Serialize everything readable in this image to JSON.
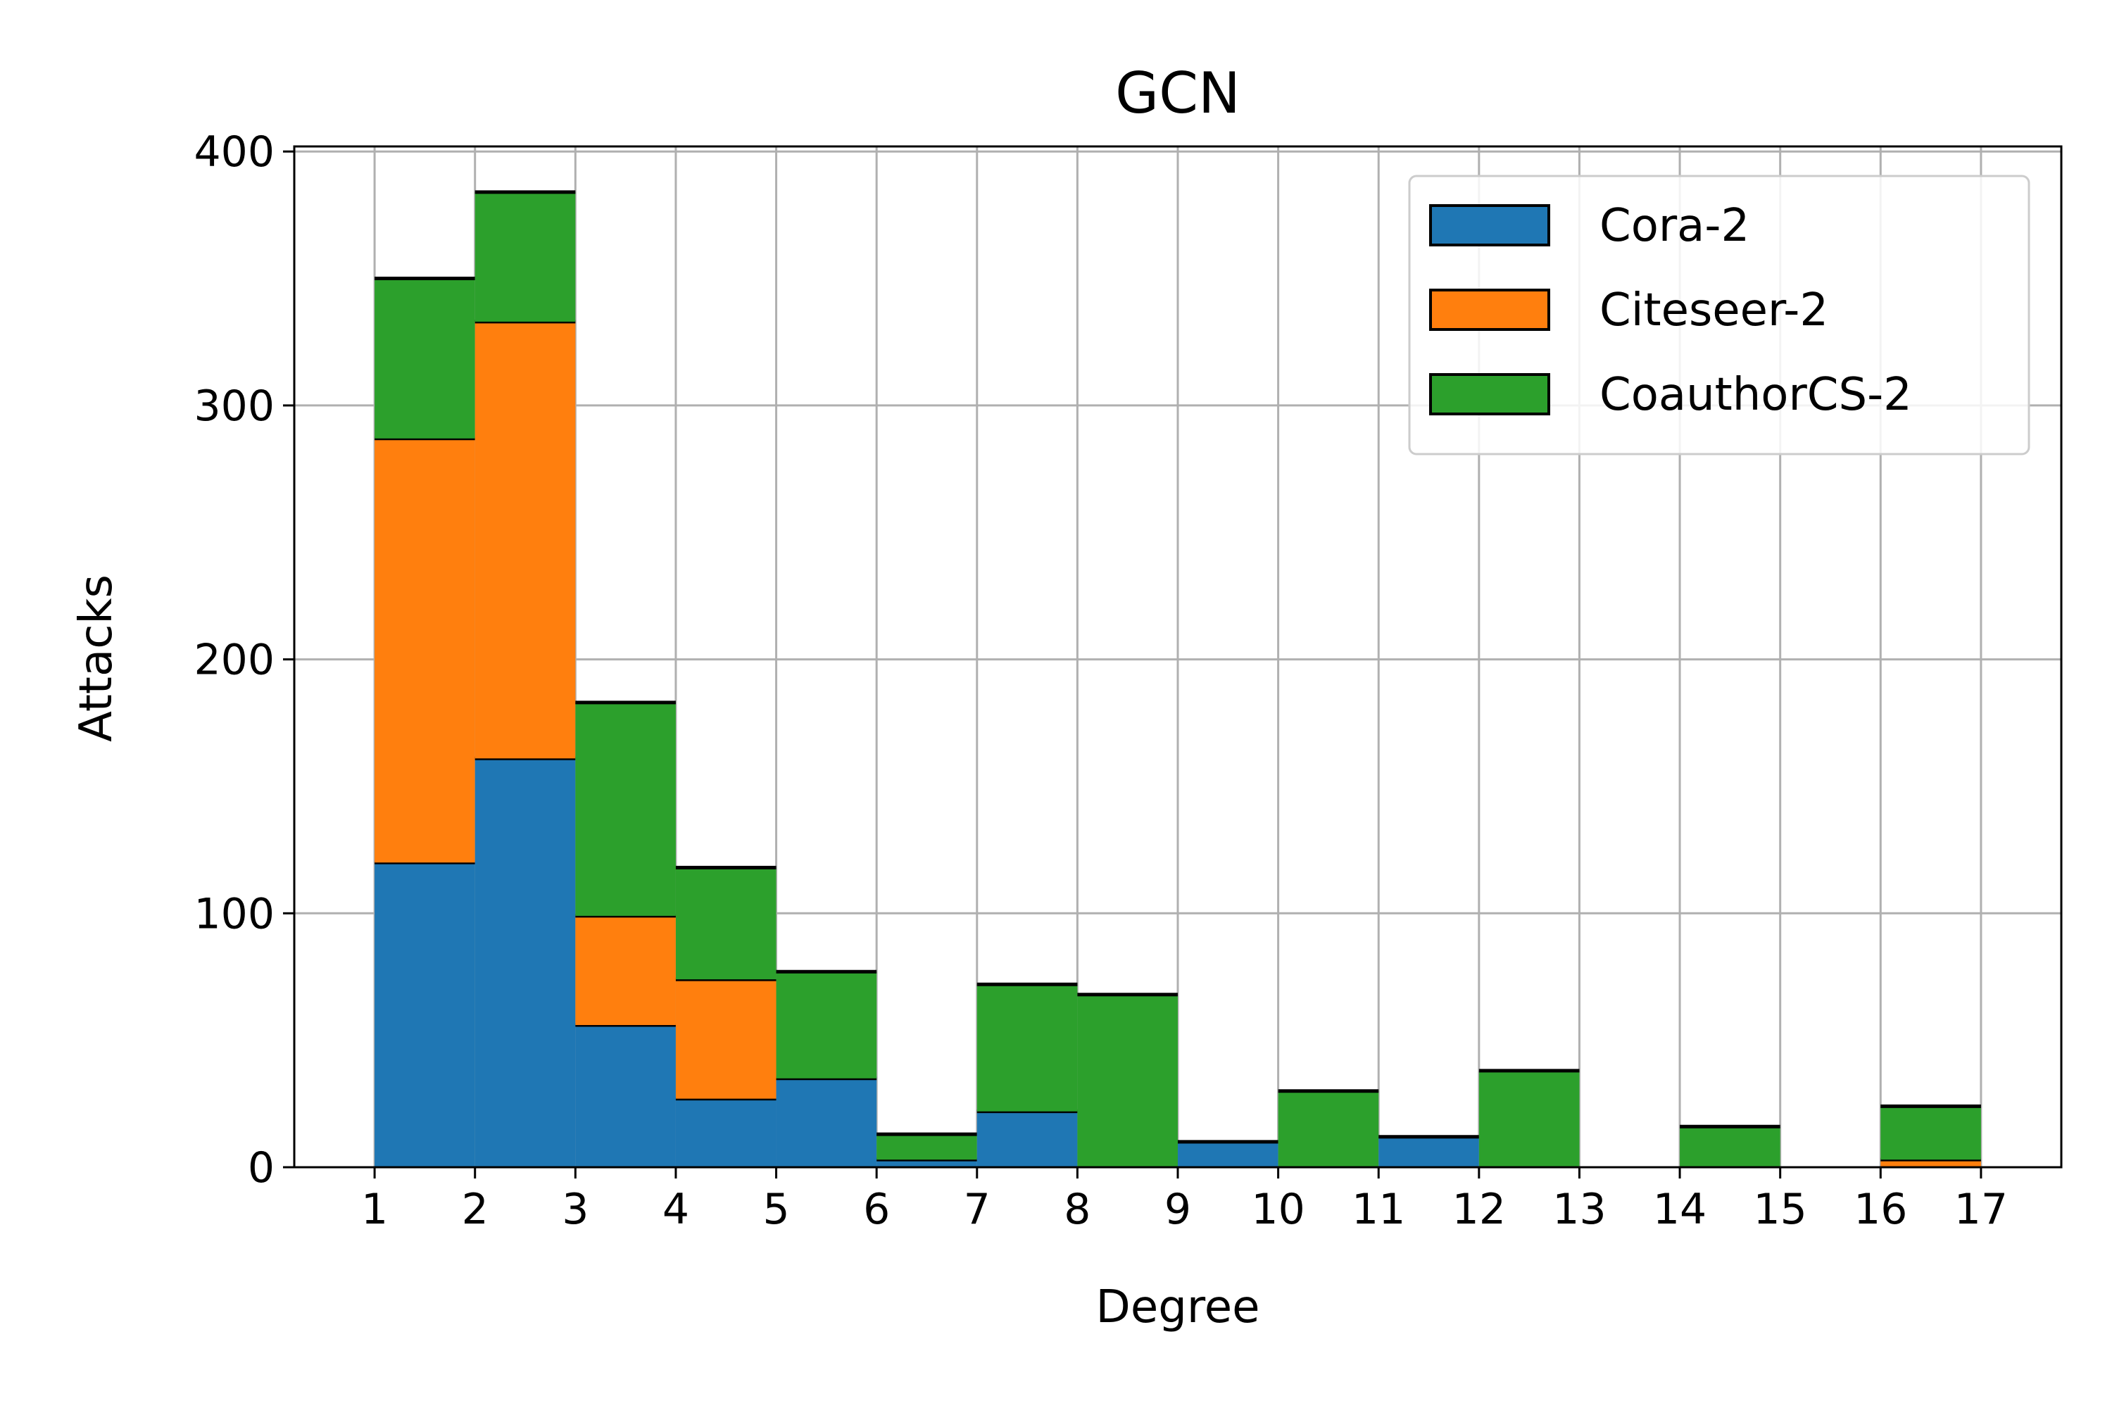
{
  "chart_data": {
    "type": "bar",
    "stacked": true,
    "title": "GCN",
    "xlabel": "Degree",
    "ylabel": "Attacks",
    "xlim": [
      0.2,
      17.8
    ],
    "ylim": [
      0,
      402
    ],
    "x_ticks": [
      1,
      2,
      3,
      4,
      5,
      6,
      7,
      8,
      9,
      10,
      11,
      12,
      13,
      14,
      15,
      16,
      17
    ],
    "y_ticks": [
      0,
      100,
      200,
      300,
      400
    ],
    "grid": true,
    "legend_position": "top-right",
    "bins": [
      1,
      2,
      3,
      4,
      5,
      6,
      7,
      8,
      9,
      10,
      11,
      12,
      13,
      14,
      15,
      16
    ],
    "series": [
      {
        "name": "Cora-2",
        "color": "#1f77b4",
        "values": [
          120,
          161,
          56,
          27,
          35,
          3,
          22,
          0,
          10,
          0,
          12,
          0,
          0,
          0,
          0,
          0
        ]
      },
      {
        "name": "Citeseer-2",
        "color": "#ff7f0e",
        "values": [
          167,
          172,
          43,
          47,
          0,
          0,
          0,
          0,
          0,
          0,
          0,
          0,
          0,
          0,
          0,
          3
        ]
      },
      {
        "name": "CoauthorCS-2",
        "color": "#2ca02c",
        "values": [
          63,
          51,
          84,
          44,
          42,
          10,
          50,
          68,
          0,
          30,
          0,
          38,
          0,
          16,
          0,
          21
        ]
      }
    ]
  }
}
